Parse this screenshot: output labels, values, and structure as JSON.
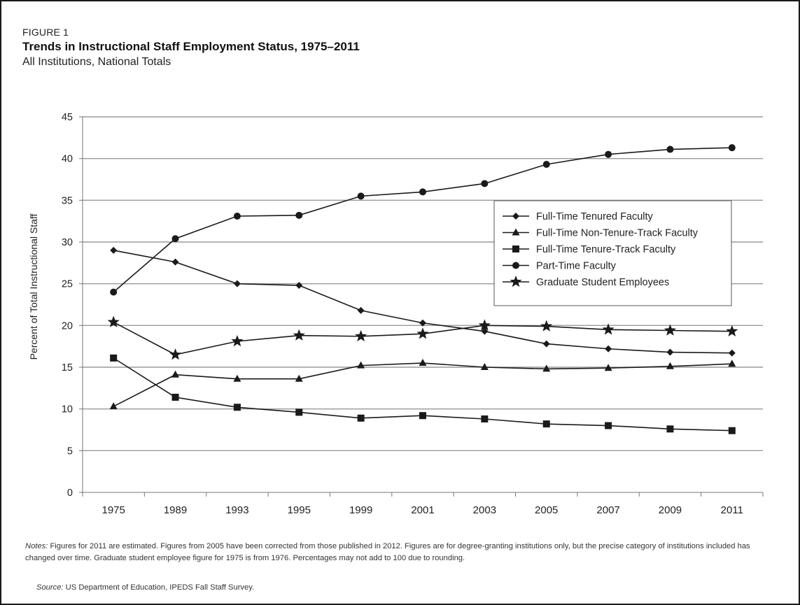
{
  "figure": {
    "label": "FIGURE 1",
    "title": "Trends in Instructional Staff Employment Status, 1975–2011",
    "subtitle": "All Institutions, National Totals"
  },
  "chart_data": {
    "type": "line",
    "ylabel": "Percent of Total Instructional Staff",
    "xlabel": "",
    "ylim": [
      0,
      45
    ],
    "yticks": [
      0,
      5,
      10,
      15,
      20,
      25,
      30,
      35,
      40,
      45
    ],
    "grid": "horizontal",
    "legend_position": "right",
    "categories": [
      "1975",
      "1989",
      "1993",
      "1995",
      "1999",
      "2001",
      "2003",
      "2005",
      "2007",
      "2009",
      "2011"
    ],
    "series": [
      {
        "name": "Full-Time Tenured Faculty",
        "marker": "diamond",
        "values": [
          29.0,
          27.6,
          25.0,
          24.8,
          21.8,
          20.3,
          19.3,
          17.8,
          17.2,
          16.8,
          16.7
        ]
      },
      {
        "name": "Full-Time Non-Tenure-Track Faculty",
        "marker": "triangle",
        "values": [
          10.3,
          14.1,
          13.6,
          13.6,
          15.2,
          15.5,
          15.0,
          14.8,
          14.9,
          15.1,
          15.4
        ]
      },
      {
        "name": "Full-Time Tenure-Track Faculty",
        "marker": "square",
        "values": [
          16.1,
          11.4,
          10.2,
          9.6,
          8.9,
          9.2,
          8.8,
          8.2,
          8.0,
          7.6,
          7.4
        ]
      },
      {
        "name": "Part-Time Faculty",
        "marker": "circle",
        "values": [
          24.0,
          30.4,
          33.1,
          33.2,
          35.5,
          36.0,
          37.0,
          39.3,
          40.5,
          41.1,
          41.3
        ]
      },
      {
        "name": "Graduate Student Employees",
        "marker": "star",
        "values": [
          20.4,
          16.5,
          18.1,
          18.8,
          18.7,
          19.0,
          20.0,
          19.9,
          19.5,
          19.4,
          19.3
        ]
      }
    ],
    "colors": {
      "line": "#1a1a1a",
      "grid": "#9a9a9a",
      "axis": "#777777"
    }
  },
  "notes": {
    "lead": "Notes:",
    "text": " Figures for 2011 are estimated. Figures from 2005 have been corrected from those published in 2012. Figures are for degree-granting institutions only, but the precise category of institutions included has changed over time. Graduate student employee figure for 1975 is from 1976. Percentages may not add to 100 due to rounding."
  },
  "source": {
    "lead": "Source:",
    "text": " US Department of Education, IPEDS Fall Staff Survey."
  }
}
